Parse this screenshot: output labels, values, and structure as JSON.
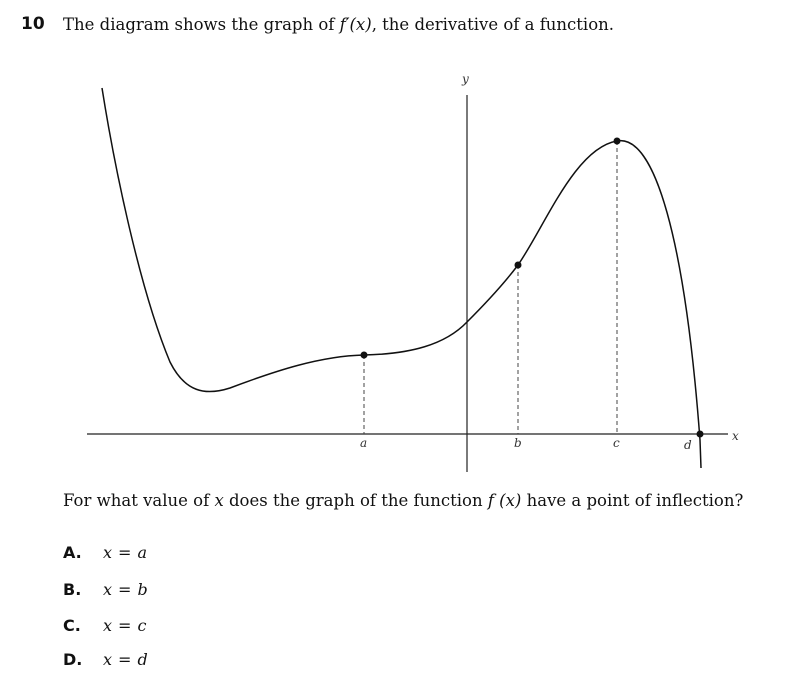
{
  "question": {
    "number": "10",
    "stem_prefix": "The diagram shows the graph of ",
    "stem_function": "f′(x)",
    "stem_suffix": ", the derivative of a function.",
    "prompt_prefix": "For what value of ",
    "prompt_var": "x",
    "prompt_mid": " does the graph of the function ",
    "prompt_function": "f (x)",
    "prompt_suffix": " have a point of inflection?"
  },
  "graph": {
    "x_axis_label": "x",
    "y_axis_label": "y",
    "point_labels": [
      "a",
      "b",
      "c",
      "d"
    ],
    "curve_color": "#111111",
    "axis_color": "#222222",
    "guide_color": "#444444"
  },
  "options": [
    {
      "letter": "A.",
      "var": "x",
      "eq": "=",
      "value": "a"
    },
    {
      "letter": "B.",
      "var": "x",
      "eq": "=",
      "value": "b"
    },
    {
      "letter": "C.",
      "var": "x",
      "eq": "=",
      "value": "c"
    },
    {
      "letter": "D.",
      "var": "x",
      "eq": "=",
      "value": "d"
    }
  ]
}
